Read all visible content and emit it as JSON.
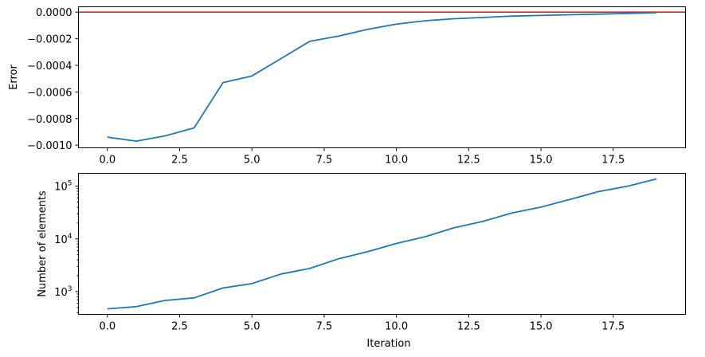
{
  "chart_data": [
    {
      "type": "line",
      "title": "",
      "xlabel": "",
      "ylabel": "Error",
      "xlim": [
        -1.0,
        20.0
      ],
      "ylim": [
        -0.00102,
        4e-05
      ],
      "x_ticks": [
        0.0,
        2.5,
        5.0,
        7.5,
        10.0,
        12.5,
        15.0,
        17.5
      ],
      "x_tick_labels": [
        "0.0",
        "2.5",
        "5.0",
        "7.5",
        "10.0",
        "12.5",
        "15.0",
        "17.5"
      ],
      "y_ticks": [
        0.0,
        -0.0002,
        -0.0004,
        -0.0006,
        -0.0008,
        -0.001
      ],
      "y_tick_labels": [
        "0.0000",
        "−0.0002",
        "−0.0004",
        "−0.0006",
        "−0.0008",
        "−0.0010"
      ],
      "grid": false,
      "series": [
        {
          "color": "#1f77b4",
          "x": [
            0,
            1,
            2,
            3,
            4,
            5,
            6,
            7,
            8,
            9,
            10,
            11,
            12,
            13,
            14,
            15,
            16,
            17,
            18,
            19
          ],
          "values": [
            -0.00094,
            -0.00097,
            -0.00093,
            -0.00087,
            -0.00053,
            -0.00048,
            -0.00035,
            -0.00022,
            -0.00018,
            -0.00013,
            -9e-05,
            -6.5e-05,
            -5e-05,
            -4e-05,
            -3e-05,
            -2.5e-05,
            -2e-05,
            -1.5e-05,
            -1e-05,
            -5e-06
          ]
        }
      ],
      "reference_line": {
        "y": 0.0,
        "color": "#d62728"
      }
    },
    {
      "type": "line",
      "title": "",
      "xlabel": "Iteration",
      "ylabel": "Number of elements",
      "yscale": "log",
      "xlim": [
        -1.0,
        20.0
      ],
      "ylim": [
        370,
        175000
      ],
      "x_ticks": [
        0.0,
        2.5,
        5.0,
        7.5,
        10.0,
        12.5,
        15.0,
        17.5
      ],
      "x_tick_labels": [
        "0.0",
        "2.5",
        "5.0",
        "7.5",
        "10.0",
        "12.5",
        "15.0",
        "17.5"
      ],
      "y_ticks": [
        1000,
        10000,
        100000
      ],
      "y_tick_labels": [
        {
          "base": "10",
          "exp": "3"
        },
        {
          "base": "10",
          "exp": "4"
        },
        {
          "base": "10",
          "exp": "5"
        }
      ],
      "grid": false,
      "series": [
        {
          "color": "#1f77b4",
          "x": [
            0,
            1,
            2,
            3,
            4,
            5,
            6,
            7,
            8,
            9,
            10,
            11,
            12,
            13,
            14,
            15,
            16,
            17,
            18,
            19
          ],
          "values": [
            470,
            520,
            680,
            760,
            1170,
            1420,
            2150,
            2750,
            4200,
            5700,
            8200,
            11000,
            16300,
            21500,
            31000,
            40000,
            56000,
            79000,
            100000,
            137000
          ]
        }
      ]
    }
  ]
}
